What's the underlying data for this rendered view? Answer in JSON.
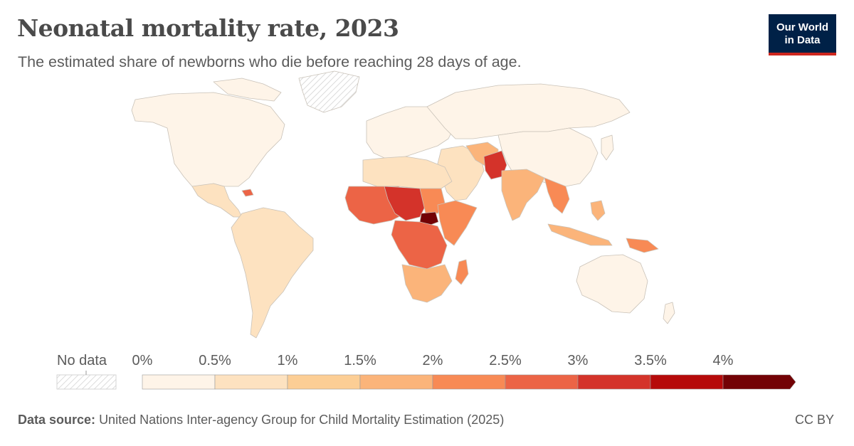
{
  "header": {
    "title": "Neonatal mortality rate, 2023",
    "subtitle": "The estimated share of newborns who die before reaching 28 days of age."
  },
  "logo": {
    "line1": "Our World",
    "line2": "in Data"
  },
  "legend": {
    "no_data_label": "No data",
    "tick_labels": [
      "0%",
      "0.5%",
      "1%",
      "1.5%",
      "2%",
      "2.5%",
      "3%",
      "3.5%",
      "4%"
    ],
    "bins": [
      {
        "range": "0-0.5%",
        "color": "#fef4e8"
      },
      {
        "range": "0.5-1%",
        "color": "#fde2c0"
      },
      {
        "range": "1-1.5%",
        "color": "#fcce95"
      },
      {
        "range": "1.5-2%",
        "color": "#fbb47a"
      },
      {
        "range": "2-2.5%",
        "color": "#f88a55"
      },
      {
        "range": "2.5-3%",
        "color": "#ec6446"
      },
      {
        "range": "3-3.5%",
        "color": "#d4332a"
      },
      {
        "range": "3.5-4%",
        "color": "#b60a0a"
      },
      {
        "range": ">4%",
        "color": "#730205"
      }
    ]
  },
  "regions_shaded": {
    "north_america": "#fef4e8",
    "central_america": "#fde2c0",
    "south_america": "#fde2c0",
    "europe": "#fef4e8",
    "russia_central_asia": "#fef4e8",
    "china": "#fef4e8",
    "north_africa": "#fde2c0",
    "west_africa": "#ec6446",
    "sahel": "#d4332a",
    "south_sudan": "#730205",
    "east_africa": "#f88a55",
    "central_africa": "#ec6446",
    "southern_africa": "#fbb47a",
    "madagascar": "#f88a55",
    "middle_east": "#fde2c0",
    "pakistan": "#d4332a",
    "india": "#fbb47a",
    "southeast_asia": "#fbb47a",
    "australia": "#fef4e8",
    "greenland": "no data"
  },
  "footer": {
    "source_label": "Data source:",
    "source_text": "United Nations Inter-agency Group for Child Mortality Estimation (2025)",
    "license": "CC BY"
  }
}
